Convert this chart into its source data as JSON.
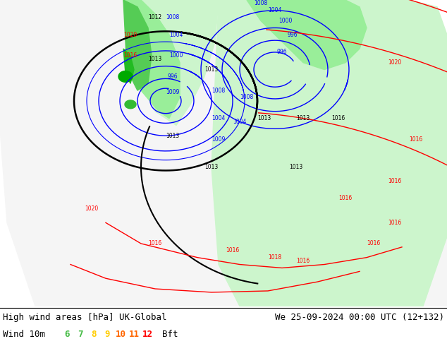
{
  "title_left": "High wind areas [hPa] UK-Global",
  "title_right": "We 25-09-2024 00:00 UTC (12+132)",
  "wind_label": "Wind 10m",
  "bft_label": "Bft",
  "bft_numbers": [
    "6",
    "7",
    "8",
    "9",
    "10",
    "11",
    "12"
  ],
  "bft_colors": [
    "#44bb44",
    "#44bb44",
    "#ffcc00",
    "#ffcc00",
    "#ff6600",
    "#ff6600",
    "#ff0000"
  ],
  "legend_bg": "#ffffff",
  "fig_width": 6.34,
  "fig_height": 4.9,
  "dpi": 100,
  "land_color": "#c8c4a0",
  "white_wedge_color": "#f5f5f5",
  "light_green": "#ccf5cc",
  "mid_green": "#99ee99",
  "dark_green": "#55cc55",
  "bright_green": "#22bb22",
  "gray_bg": "#b8bab0"
}
